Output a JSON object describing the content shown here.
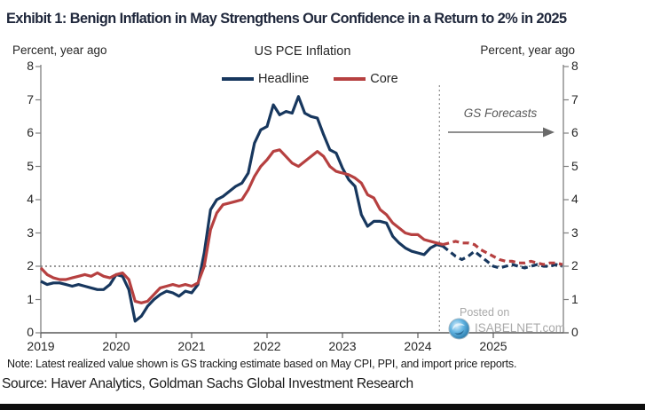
{
  "header": {
    "title": "Exhibit 1: Benign Inflation in May Strengthens Our Confidence in a Return to 2% in 2025"
  },
  "chart": {
    "axis_label_left": "Percent, year ago",
    "axis_label_right": "Percent, year ago",
    "title": "US PCE Inflation",
    "forecast_annotation": "GS Forecasts",
    "colors": {
      "headline": "#17375e",
      "core": "#b64040",
      "axis": "#808080",
      "annotation": "#6a6a6a"
    }
  },
  "watermark": {
    "line1": "Posted on",
    "line2": "ISABELNET.com",
    "icon": "globe-icon"
  },
  "footer": {
    "note": "Note: Latest realized value shown is GS tracking estimate based on May CPI, PPI, and import price reports.",
    "source": "Source: Haver Analytics, Goldman Sachs Global Investment Research"
  },
  "chart_data": {
    "type": "line",
    "title": "US PCE Inflation",
    "ylabel": "Percent, year ago",
    "ylim": [
      0,
      8
    ],
    "yticks": [
      0,
      1,
      2,
      3,
      4,
      5,
      6,
      7,
      8
    ],
    "xticks": [
      2019,
      2020,
      2021,
      2022,
      2023,
      2024,
      2025
    ],
    "x_start": {
      "year": 2019,
      "month": 1
    },
    "x_frequency": "monthly",
    "grid": false,
    "legend_position": "top",
    "reference_line_y": 2,
    "forecast_start": "2024-05",
    "forecast_start_index": 64,
    "series": [
      {
        "name": "Headline",
        "color": "#17375e",
        "values": [
          1.55,
          1.45,
          1.5,
          1.5,
          1.45,
          1.4,
          1.45,
          1.4,
          1.35,
          1.3,
          1.3,
          1.45,
          1.75,
          1.7,
          1.3,
          0.35,
          0.5,
          0.8,
          1.0,
          1.15,
          1.25,
          1.2,
          1.1,
          1.25,
          1.2,
          1.45,
          2.4,
          3.7,
          4.0,
          4.1,
          4.25,
          4.4,
          4.5,
          4.8,
          5.7,
          6.1,
          6.2,
          6.85,
          6.55,
          6.65,
          6.6,
          7.1,
          6.6,
          6.5,
          6.45,
          5.95,
          5.5,
          5.4,
          4.95,
          4.6,
          4.4,
          3.55,
          3.2,
          3.35,
          3.35,
          3.3,
          2.9,
          2.7,
          2.55,
          2.45,
          2.4,
          2.35,
          2.55,
          2.65,
          2.6,
          2.45,
          2.3,
          2.2,
          2.3,
          2.45,
          2.3,
          2.15,
          2.0,
          1.95,
          2.0,
          2.05,
          2.0,
          1.95,
          2.0,
          2.05,
          2.0,
          2.0,
          2.05,
          2.0
        ]
      },
      {
        "name": "Core",
        "color": "#b64040",
        "values": [
          1.95,
          1.75,
          1.65,
          1.6,
          1.6,
          1.65,
          1.7,
          1.75,
          1.7,
          1.8,
          1.7,
          1.65,
          1.75,
          1.8,
          1.6,
          0.95,
          0.9,
          0.95,
          1.15,
          1.35,
          1.4,
          1.45,
          1.4,
          1.45,
          1.4,
          1.5,
          2.0,
          3.1,
          3.6,
          3.85,
          3.9,
          3.95,
          4.0,
          4.3,
          4.7,
          5.0,
          5.2,
          5.45,
          5.5,
          5.3,
          5.1,
          5.0,
          5.15,
          5.3,
          5.45,
          5.3,
          5.0,
          4.85,
          4.8,
          4.75,
          4.65,
          4.5,
          4.15,
          4.05,
          3.7,
          3.55,
          3.3,
          3.15,
          3.0,
          2.95,
          2.95,
          2.8,
          2.75,
          2.7,
          2.65,
          2.7,
          2.75,
          2.7,
          2.7,
          2.65,
          2.5,
          2.4,
          2.3,
          2.2,
          2.15,
          2.15,
          2.1,
          2.1,
          2.15,
          2.1,
          2.05,
          2.1,
          2.1,
          2.05
        ]
      }
    ]
  }
}
